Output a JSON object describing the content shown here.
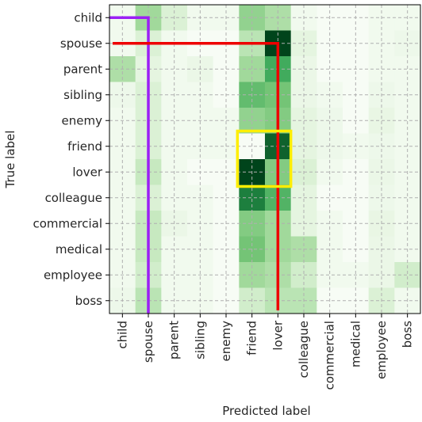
{
  "chart_data": {
    "type": "heatmap",
    "xlabel": "Predicted label",
    "ylabel": "True label",
    "row_labels": [
      "child",
      "spouse",
      "parent",
      "sibling",
      "enemy",
      "friend",
      "lover",
      "colleague",
      "commercial",
      "medical",
      "employee",
      "boss"
    ],
    "col_labels": [
      "child",
      "spouse",
      "parent",
      "sibling",
      "enemy",
      "friend",
      "lover",
      "colleague",
      "commercial",
      "medical",
      "employee",
      "boss"
    ],
    "matrix": [
      [
        0.05,
        0.45,
        0.2,
        0.05,
        0.05,
        0.5,
        0.4,
        0.05,
        0.0,
        0.0,
        0.05,
        0.05
      ],
      [
        0.05,
        0.2,
        0.05,
        0.0,
        0.0,
        0.35,
        1.0,
        0.15,
        0.0,
        0.0,
        0.05,
        0.08
      ],
      [
        0.4,
        0.15,
        0.05,
        0.1,
        0.0,
        0.45,
        0.75,
        0.1,
        0.0,
        0.0,
        0.05,
        0.05
      ],
      [
        0.08,
        0.2,
        0.05,
        0.05,
        0.0,
        0.65,
        0.6,
        0.1,
        0.05,
        0.0,
        0.08,
        0.05
      ],
      [
        0.05,
        0.2,
        0.05,
        0.05,
        0.05,
        0.5,
        0.55,
        0.15,
        0.08,
        0.0,
        0.12,
        0.05
      ],
      [
        0.05,
        0.2,
        0.05,
        0.05,
        0.05,
        0.0,
        0.95,
        0.15,
        0.08,
        0.05,
        0.08,
        0.05
      ],
      [
        0.05,
        0.3,
        0.05,
        0.0,
        0.0,
        1.0,
        0.55,
        0.2,
        0.05,
        0.0,
        0.1,
        0.05
      ],
      [
        0.05,
        0.2,
        0.05,
        0.05,
        0.0,
        0.9,
        0.7,
        0.15,
        0.0,
        0.0,
        0.08,
        0.05
      ],
      [
        0.05,
        0.3,
        0.1,
        0.05,
        0.0,
        0.55,
        0.45,
        0.15,
        0.05,
        0.0,
        0.12,
        0.05
      ],
      [
        0.05,
        0.3,
        0.05,
        0.05,
        0.0,
        0.6,
        0.45,
        0.4,
        0.05,
        0.0,
        0.1,
        0.05
      ],
      [
        0.05,
        0.25,
        0.05,
        0.05,
        0.0,
        0.45,
        0.4,
        0.25,
        0.05,
        0.05,
        0.1,
        0.25
      ],
      [
        0.08,
        0.35,
        0.05,
        0.05,
        0.0,
        0.25,
        0.35,
        0.35,
        0.0,
        0.0,
        0.2,
        0.05
      ]
    ],
    "colormap": "Greens",
    "grid": true,
    "grid_style": "dashed",
    "annotations": [
      {
        "shape": "polyline",
        "color": "#9b1ff5",
        "description": "purple L: child row to spouse column"
      },
      {
        "shape": "polyline",
        "color": "#ee0000",
        "description": "red L: spouse row to lover column"
      },
      {
        "shape": "rect",
        "color": "#ffee00",
        "description": "yellow box around friend/lover x friend/lover block"
      }
    ]
  }
}
